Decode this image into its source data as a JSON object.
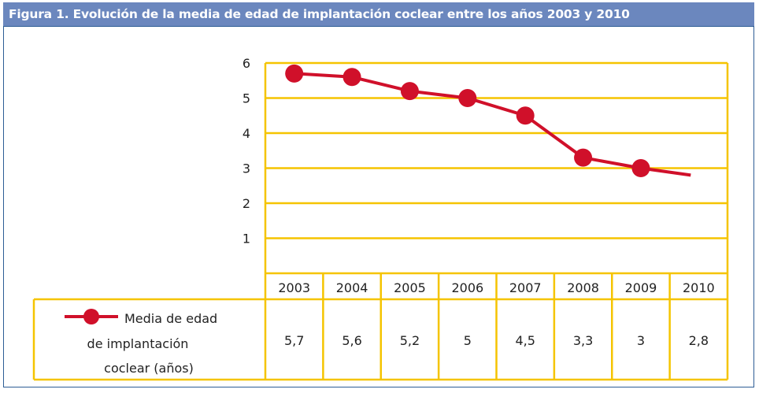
{
  "title": "Figura 1.  Evolución de la media de edad de implantación coclear entre los años 2003 y 2010",
  "colors": {
    "title_bg": "#6b87be",
    "border": "#2d5d95",
    "grid": "#f5c400",
    "series": "#d0102a"
  },
  "chart_data": {
    "type": "line",
    "title": "Figura 1.  Evolución de la media de edad de implantación coclear entre los años 2003 y 2010",
    "categories": [
      "2003",
      "2004",
      "2005",
      "2006",
      "2007",
      "2008",
      "2009",
      "2010"
    ],
    "series": [
      {
        "name": "Media de edad de implantación coclear (años)",
        "legend_lines": [
          "Media de edad",
          "de implantación",
          "coclear (años)"
        ],
        "values": [
          5.7,
          5.6,
          5.2,
          5,
          4.5,
          3.3,
          3,
          2.8
        ],
        "labels": [
          "5,7",
          "5,6",
          "5,2",
          "5",
          "4,5",
          "3,3",
          "3",
          "2,8"
        ]
      }
    ],
    "yticks": [
      "1",
      "2",
      "3",
      "4",
      "5",
      "6"
    ],
    "ylim": [
      0,
      6
    ],
    "grid": true,
    "legend": "data-table-left",
    "xlabel": "",
    "ylabel": ""
  }
}
